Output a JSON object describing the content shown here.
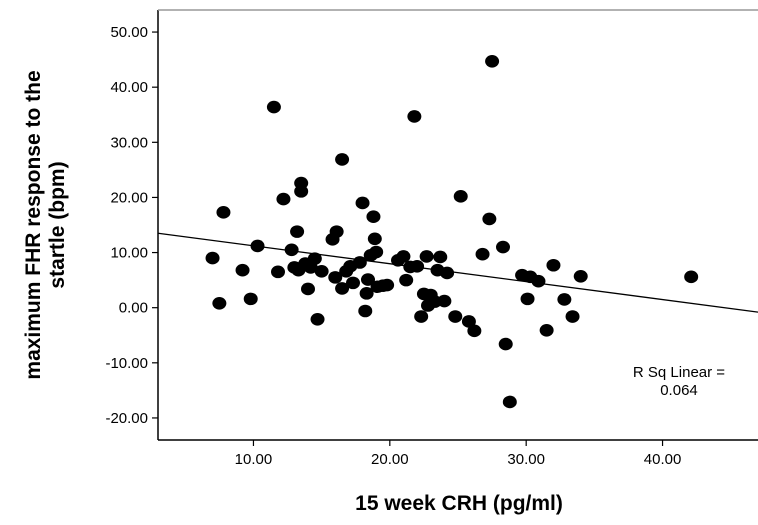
{
  "chart_data": {
    "type": "scatter",
    "title": "",
    "xlabel": "15 week CRH (pg/ml)",
    "ylabel_lines": [
      "maximum FHR response to the",
      "startle (bpm)"
    ],
    "xlim": [
      3,
      47
    ],
    "ylim": [
      -24,
      54
    ],
    "x_ticks": [
      10,
      20,
      30,
      40
    ],
    "x_tick_labels": [
      "10.00",
      "20.00",
      "30.00",
      "40.00"
    ],
    "y_ticks": [
      -20,
      -10,
      0,
      10,
      20,
      30,
      40,
      50
    ],
    "y_tick_labels": [
      "-20.00",
      "-10.00",
      "0.00",
      "10.00",
      "20.00",
      "30.00",
      "40.00",
      "50.00"
    ],
    "grid": false,
    "fit_line": {
      "x": [
        3,
        47
      ],
      "y": [
        13.5,
        -0.8
      ]
    },
    "annotation_lines": [
      "R Sq Linear =",
      "0.064"
    ],
    "points": [
      {
        "x": 7.0,
        "y": 9.0
      },
      {
        "x": 7.5,
        "y": 0.8
      },
      {
        "x": 7.8,
        "y": 17.3
      },
      {
        "x": 9.2,
        "y": 6.8
      },
      {
        "x": 9.8,
        "y": 1.6
      },
      {
        "x": 10.3,
        "y": 11.2
      },
      {
        "x": 11.5,
        "y": 36.4
      },
      {
        "x": 11.8,
        "y": 6.5
      },
      {
        "x": 12.2,
        "y": 19.7
      },
      {
        "x": 12.8,
        "y": 10.5
      },
      {
        "x": 13.0,
        "y": 7.3
      },
      {
        "x": 13.2,
        "y": 13.8
      },
      {
        "x": 13.3,
        "y": 6.8
      },
      {
        "x": 13.5,
        "y": 21.1
      },
      {
        "x": 13.5,
        "y": 22.6
      },
      {
        "x": 13.8,
        "y": 8.0
      },
      {
        "x": 14.0,
        "y": 3.4
      },
      {
        "x": 14.2,
        "y": 7.3
      },
      {
        "x": 14.5,
        "y": 8.9
      },
      {
        "x": 14.7,
        "y": -2.1
      },
      {
        "x": 15.0,
        "y": 6.6
      },
      {
        "x": 15.8,
        "y": 12.4
      },
      {
        "x": 16.0,
        "y": 5.5
      },
      {
        "x": 16.1,
        "y": 13.8
      },
      {
        "x": 16.5,
        "y": 26.9
      },
      {
        "x": 16.5,
        "y": 3.5
      },
      {
        "x": 16.8,
        "y": 6.6
      },
      {
        "x": 17.1,
        "y": 7.5
      },
      {
        "x": 17.3,
        "y": 4.5
      },
      {
        "x": 17.8,
        "y": 8.2
      },
      {
        "x": 18.0,
        "y": 19.0
      },
      {
        "x": 18.2,
        "y": -0.6
      },
      {
        "x": 18.3,
        "y": 2.6
      },
      {
        "x": 18.4,
        "y": 5.1
      },
      {
        "x": 18.6,
        "y": 9.5
      },
      {
        "x": 18.8,
        "y": 16.5
      },
      {
        "x": 18.9,
        "y": 12.5
      },
      {
        "x": 19.0,
        "y": 10.1
      },
      {
        "x": 19.1,
        "y": 3.8
      },
      {
        "x": 19.5,
        "y": 4.0
      },
      {
        "x": 19.8,
        "y": 4.1
      },
      {
        "x": 20.6,
        "y": 8.6
      },
      {
        "x": 21.0,
        "y": 9.3
      },
      {
        "x": 21.2,
        "y": 5.0
      },
      {
        "x": 21.5,
        "y": 7.4
      },
      {
        "x": 21.8,
        "y": 34.7
      },
      {
        "x": 22.0,
        "y": 7.5
      },
      {
        "x": 22.3,
        "y": -1.6
      },
      {
        "x": 22.5,
        "y": 2.5
      },
      {
        "x": 22.7,
        "y": 9.3
      },
      {
        "x": 22.8,
        "y": 0.4
      },
      {
        "x": 23.0,
        "y": 2.3
      },
      {
        "x": 23.3,
        "y": 1.1
      },
      {
        "x": 23.5,
        "y": 6.8
      },
      {
        "x": 23.7,
        "y": 9.2
      },
      {
        "x": 24.0,
        "y": 1.2
      },
      {
        "x": 24.2,
        "y": 6.3
      },
      {
        "x": 24.8,
        "y": -1.6
      },
      {
        "x": 25.2,
        "y": 20.2
      },
      {
        "x": 25.8,
        "y": -2.5
      },
      {
        "x": 26.2,
        "y": -4.2
      },
      {
        "x": 26.8,
        "y": 9.7
      },
      {
        "x": 27.3,
        "y": 16.1
      },
      {
        "x": 27.5,
        "y": 44.7
      },
      {
        "x": 28.3,
        "y": 11.0
      },
      {
        "x": 28.5,
        "y": -6.6
      },
      {
        "x": 28.8,
        "y": -17.1
      },
      {
        "x": 29.7,
        "y": 5.9
      },
      {
        "x": 30.1,
        "y": 1.6
      },
      {
        "x": 30.3,
        "y": 5.6
      },
      {
        "x": 30.9,
        "y": 4.8
      },
      {
        "x": 31.5,
        "y": -4.1
      },
      {
        "x": 32.0,
        "y": 7.7
      },
      {
        "x": 32.8,
        "y": 1.5
      },
      {
        "x": 33.4,
        "y": -1.6
      },
      {
        "x": 34.0,
        "y": 5.7
      },
      {
        "x": 42.1,
        "y": 5.6
      }
    ]
  }
}
